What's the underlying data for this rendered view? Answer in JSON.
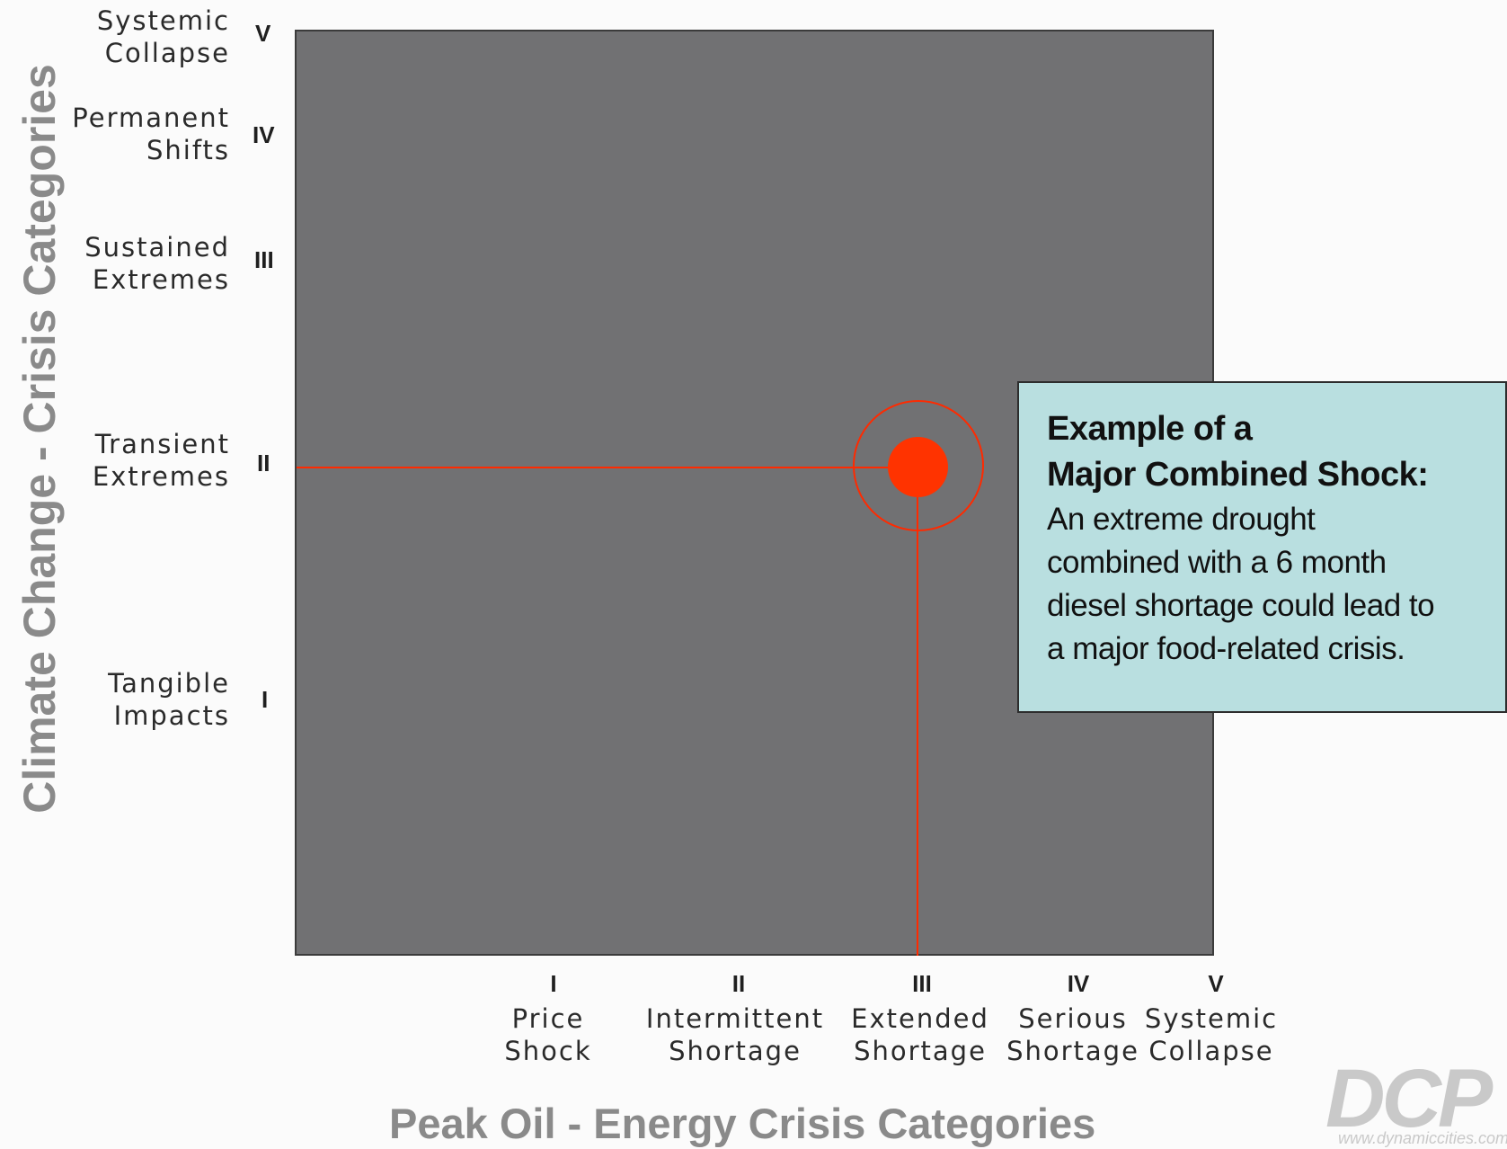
{
  "colors": {
    "plot_background": "#717173",
    "highlight": "#ff3300",
    "callout_background": "#b9dfe0",
    "axis_title": "#8a8a8a"
  },
  "y_axis": {
    "title": "Climate Change - Crisis Categories",
    "categories": [
      {
        "numeral": "I",
        "line1": "Tangible",
        "line2": "Impacts"
      },
      {
        "numeral": "II",
        "line1": "Transient",
        "line2": "Extremes"
      },
      {
        "numeral": "III",
        "line1": "Sustained",
        "line2": "Extremes"
      },
      {
        "numeral": "IV",
        "line1": "Permanent",
        "line2": "Shifts"
      },
      {
        "numeral": "V",
        "line1": "Systemic",
        "line2": "Collapse"
      }
    ]
  },
  "x_axis": {
    "title": "Peak Oil - Energy Crisis Categories",
    "categories": [
      {
        "numeral": "I",
        "line1": "Price",
        "line2": "Shock"
      },
      {
        "numeral": "II",
        "line1": "Intermittent",
        "line2": "Shortage"
      },
      {
        "numeral": "III",
        "line1": "Extended",
        "line2": "Shortage"
      },
      {
        "numeral": "IV",
        "line1": "Serious",
        "line2": "Shortage"
      },
      {
        "numeral": "V",
        "line1": "Systemic",
        "line2": "Collapse"
      }
    ]
  },
  "highlight_point": {
    "x_category": "III",
    "y_category": "II"
  },
  "callout": {
    "title_line1": "Example of a",
    "title_line2": "Major Combined Shock:",
    "body_lines": [
      "An extreme drought",
      "combined with a 6 month",
      "diesel shortage could lead to",
      "a major food-related crisis."
    ]
  },
  "logo": {
    "mark": "DCP",
    "url": "www.dynamiccities.com"
  }
}
